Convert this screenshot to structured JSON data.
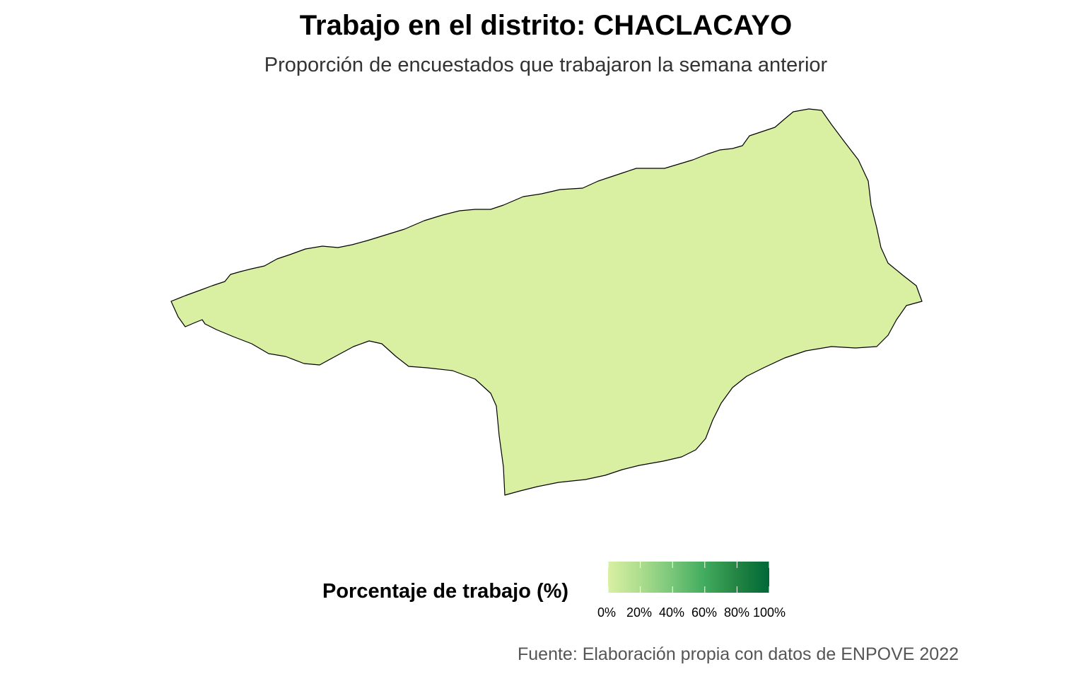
{
  "title": "Trabajo en el distrito: CHACLACAYO",
  "subtitle": "Proporción de encuestados que trabajaron la semana anterior",
  "district": {
    "name": "CHACLACAYO",
    "fill_color": "#d9f0a3",
    "stroke_color": "#000000"
  },
  "legend": {
    "title": "Porcentaje de trabajo (%)",
    "labels": [
      "0%",
      "20%",
      "40%",
      "60%",
      "80%",
      "100%"
    ],
    "gradient_colors": [
      "#d9f0a3",
      "#addd8e",
      "#78c679",
      "#41ab5d",
      "#238443",
      "#006837"
    ]
  },
  "source": "Fuente: Elaboración propia con datos de ENPOVE 2022"
}
